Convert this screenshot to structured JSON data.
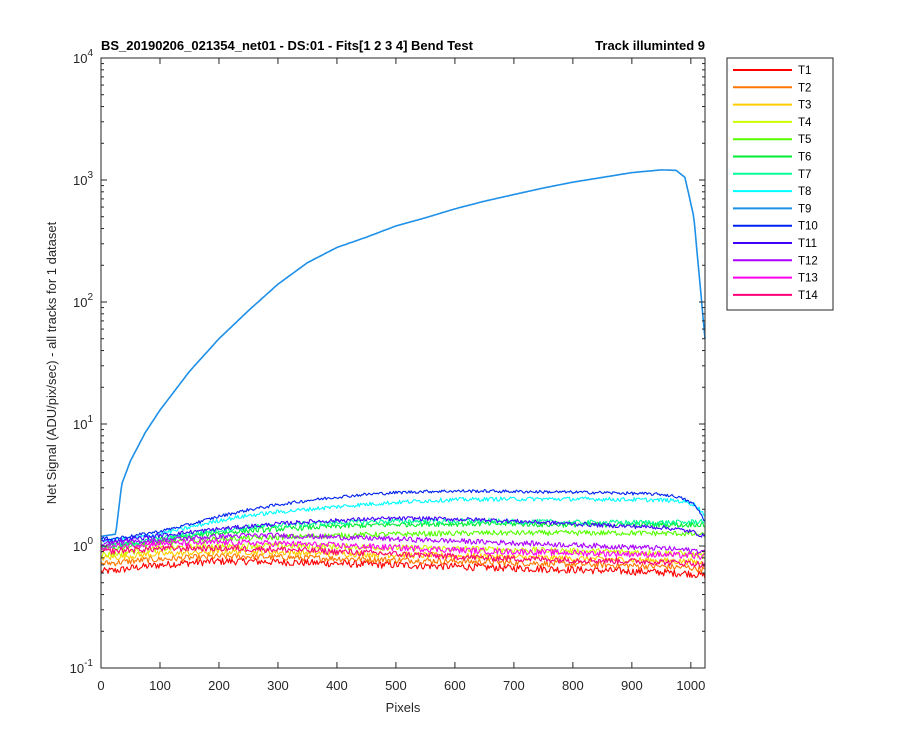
{
  "chart_data": {
    "type": "line",
    "title": "BS_20190206_021354_net01 - DS:01 - Fits[1  2  3  4]   Bend Test",
    "title_right": "Track illuminted 9",
    "xlabel": "Pixels",
    "ylabel": "Net Signal (ADU/pix/sec) - all tracks for 1 dataset",
    "xlim": [
      0,
      1024
    ],
    "ylim": [
      0.1,
      10000
    ],
    "yscale": "log",
    "grid": false,
    "legend_position": "outside-top-right",
    "x_ticks": [
      "0",
      "100",
      "200",
      "300",
      "400",
      "500",
      "600",
      "700",
      "800",
      "900",
      "1000"
    ],
    "x_tick_values": [
      0,
      100,
      200,
      300,
      400,
      500,
      600,
      700,
      800,
      900,
      1000
    ],
    "y_ticks": [
      {
        "base": "10",
        "exp": "-1",
        "value": 0.1
      },
      {
        "base": "10",
        "exp": "0",
        "value": 1
      },
      {
        "base": "10",
        "exp": "1",
        "value": 10
      },
      {
        "base": "10",
        "exp": "2",
        "value": 100
      },
      {
        "base": "10",
        "exp": "3",
        "value": 1000
      },
      {
        "base": "10",
        "exp": "4",
        "value": 10000
      }
    ],
    "x": [
      0,
      25,
      35,
      50,
      75,
      100,
      150,
      200,
      250,
      300,
      350,
      400,
      450,
      500,
      550,
      600,
      650,
      700,
      750,
      800,
      850,
      900,
      950,
      975,
      990,
      1005,
      1015,
      1024
    ],
    "series": [
      {
        "name": "T1",
        "color": "#ff0000",
        "noise": 0.07,
        "values": [
          0.62,
          0.63,
          0.64,
          0.66,
          0.68,
          0.7,
          0.73,
          0.75,
          0.75,
          0.74,
          0.73,
          0.72,
          0.71,
          0.7,
          0.69,
          0.68,
          0.67,
          0.66,
          0.65,
          0.64,
          0.63,
          0.62,
          0.61,
          0.6,
          0.6,
          0.59,
          0.58,
          0.57
        ]
      },
      {
        "name": "T2",
        "color": "#ff7700",
        "noise": 0.06,
        "values": [
          0.72,
          0.73,
          0.74,
          0.75,
          0.77,
          0.78,
          0.8,
          0.82,
          0.82,
          0.81,
          0.8,
          0.79,
          0.78,
          0.77,
          0.76,
          0.75,
          0.74,
          0.73,
          0.72,
          0.71,
          0.7,
          0.69,
          0.68,
          0.67,
          0.67,
          0.66,
          0.65,
          0.64
        ]
      },
      {
        "name": "T3",
        "color": "#ffcc00",
        "noise": 0.06,
        "values": [
          0.8,
          0.81,
          0.82,
          0.83,
          0.85,
          0.86,
          0.88,
          0.9,
          0.9,
          0.89,
          0.88,
          0.87,
          0.86,
          0.85,
          0.84,
          0.83,
          0.82,
          0.81,
          0.8,
          0.79,
          0.78,
          0.77,
          0.76,
          0.75,
          0.75,
          0.74,
          0.73,
          0.72
        ]
      },
      {
        "name": "T4",
        "color": "#ccff00",
        "noise": 0.06,
        "values": [
          0.85,
          0.86,
          0.88,
          0.9,
          0.93,
          0.95,
          0.98,
          1,
          1.01,
          1.01,
          1,
          0.99,
          0.98,
          0.97,
          0.96,
          0.95,
          0.94,
          0.93,
          0.92,
          0.91,
          0.9,
          0.89,
          0.88,
          0.87,
          0.86,
          0.85,
          0.84,
          0.83
        ]
      },
      {
        "name": "T5",
        "color": "#55ff00",
        "noise": 0.05,
        "values": [
          0.95,
          0.96,
          0.98,
          1,
          1.03,
          1.06,
          1.1,
          1.14,
          1.16,
          1.18,
          1.2,
          1.22,
          1.24,
          1.25,
          1.26,
          1.27,
          1.28,
          1.28,
          1.28,
          1.28,
          1.28,
          1.28,
          1.27,
          1.27,
          1.26,
          1.25,
          1.24,
          1.22
        ]
      },
      {
        "name": "T6",
        "color": "#00ee33",
        "noise": 0.05,
        "values": [
          1,
          1.01,
          1.03,
          1.05,
          1.08,
          1.12,
          1.2,
          1.28,
          1.34,
          1.38,
          1.42,
          1.45,
          1.48,
          1.5,
          1.52,
          1.52,
          1.52,
          1.52,
          1.5,
          1.5,
          1.5,
          1.5,
          1.5,
          1.5,
          1.48,
          1.52,
          1.5,
          1.48
        ]
      },
      {
        "name": "T7",
        "color": "#00ff99",
        "noise": 0.05,
        "values": [
          1,
          1.01,
          1.03,
          1.05,
          1.1,
          1.15,
          1.25,
          1.35,
          1.42,
          1.48,
          1.52,
          1.55,
          1.58,
          1.6,
          1.6,
          1.6,
          1.6,
          1.58,
          1.58,
          1.56,
          1.56,
          1.56,
          1.56,
          1.56,
          1.56,
          1.58,
          1.6,
          1.6
        ]
      },
      {
        "name": "T8",
        "color": "#00ffff",
        "noise": 0.04,
        "values": [
          1.1,
          1.12,
          1.14,
          1.16,
          1.2,
          1.26,
          1.42,
          1.62,
          1.78,
          1.9,
          2,
          2.1,
          2.2,
          2.28,
          2.35,
          2.4,
          2.42,
          2.43,
          2.43,
          2.43,
          2.42,
          2.4,
          2.38,
          2.35,
          2.3,
          2.2,
          2,
          1.8
        ]
      },
      {
        "name": "T9",
        "color": "#1e90e8",
        "noise": 0,
        "values": [
          1.2,
          1.25,
          3.2,
          5,
          8.5,
          13,
          27,
          50,
          85,
          140,
          210,
          280,
          340,
          420,
          490,
          580,
          670,
          760,
          860,
          960,
          1050,
          1150,
          1210,
          1200,
          1050,
          500,
          150,
          50
        ]
      },
      {
        "name": "T10",
        "color": "#0022ee",
        "noise": 0.03,
        "values": [
          1.15,
          1.16,
          1.18,
          1.2,
          1.26,
          1.32,
          1.5,
          1.75,
          1.98,
          2.18,
          2.36,
          2.52,
          2.65,
          2.74,
          2.8,
          2.82,
          2.82,
          2.8,
          2.78,
          2.76,
          2.74,
          2.7,
          2.65,
          2.55,
          2.4,
          2.2,
          1.9,
          1.6
        ]
      },
      {
        "name": "T11",
        "color": "#4400ff",
        "noise": 0.04,
        "values": [
          1.1,
          1.11,
          1.12,
          1.14,
          1.18,
          1.22,
          1.3,
          1.38,
          1.45,
          1.52,
          1.58,
          1.62,
          1.66,
          1.68,
          1.68,
          1.66,
          1.64,
          1.6,
          1.56,
          1.52,
          1.48,
          1.45,
          1.42,
          1.38,
          1.34,
          1.3,
          1.24,
          1.2
        ]
      },
      {
        "name": "T12",
        "color": "#aa00ff",
        "noise": 0.05,
        "values": [
          1.05,
          1.06,
          1.07,
          1.08,
          1.1,
          1.12,
          1.16,
          1.2,
          1.22,
          1.22,
          1.2,
          1.18,
          1.16,
          1.14,
          1.12,
          1.1,
          1.08,
          1.06,
          1.04,
          1.02,
          1,
          0.98,
          0.96,
          0.94,
          0.93,
          0.92,
          0.91,
          0.9
        ]
      },
      {
        "name": "T13",
        "color": "#ff00ee",
        "noise": 0.06,
        "values": [
          0.98,
          0.99,
          1,
          1.02,
          1.04,
          1.05,
          1.06,
          1.07,
          1.06,
          1.05,
          1.03,
          1.01,
          0.99,
          0.97,
          0.95,
          0.93,
          0.91,
          0.9,
          0.89,
          0.88,
          0.87,
          0.86,
          0.85,
          0.84,
          0.84,
          0.83,
          0.82,
          0.82
        ]
      },
      {
        "name": "T14",
        "color": "#ff0077",
        "noise": 0.06,
        "values": [
          0.9,
          0.91,
          0.92,
          0.93,
          0.94,
          0.95,
          0.96,
          0.96,
          0.95,
          0.94,
          0.92,
          0.9,
          0.88,
          0.86,
          0.84,
          0.82,
          0.8,
          0.79,
          0.78,
          0.77,
          0.76,
          0.75,
          0.74,
          0.73,
          0.73,
          0.72,
          0.71,
          0.7
        ]
      }
    ]
  }
}
